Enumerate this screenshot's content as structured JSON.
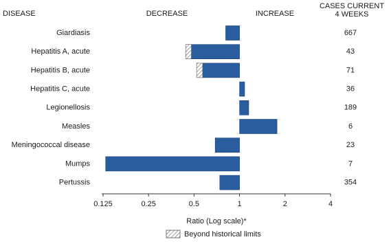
{
  "chart_data": {
    "type": "bar",
    "orientation": "horizontal",
    "xscale": "log",
    "headers": {
      "disease": "DISEASE",
      "decrease": "DECREASE",
      "increase": "INCREASE",
      "cases": [
        "CASES CURRENT",
        "4 WEEKS"
      ]
    },
    "categories": [
      "Giardiasis",
      "Hepatitis A, acute",
      "Hepatitis B, acute",
      "Hepatitis C, acute",
      "Legionellosis",
      "Measles",
      "Meningococcal disease",
      "Mumps",
      "Pertussis"
    ],
    "values": [
      0.81,
      0.44,
      0.52,
      1.08,
      1.15,
      1.77,
      0.69,
      0.13,
      0.74
    ],
    "limits": [
      null,
      0.48,
      0.57,
      null,
      null,
      null,
      null,
      null,
      null
    ],
    "limits_label": "Beyond historical limits",
    "cases": [
      667,
      43,
      71,
      36,
      189,
      6,
      23,
      7,
      354
    ],
    "color": "#2a5d9e",
    "xlim": [
      0.125,
      4
    ],
    "xticks": [
      0.125,
      0.25,
      0.5,
      1,
      2,
      4
    ],
    "xlabel": "Ratio (Log scale)*"
  }
}
